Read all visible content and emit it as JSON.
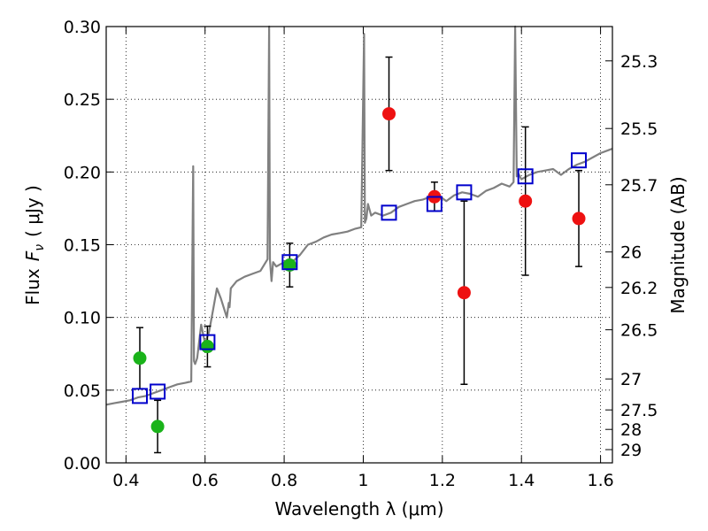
{
  "chart_data": {
    "type": "scatter",
    "xlabel": "Wavelength  λ (μm)",
    "ylabel": "Flux  F_ν  ( μJy )",
    "ylabel_parts": {
      "prefix": "Flux",
      "symbol": "F",
      "subscript": "ν",
      "unit": "( μJy )"
    },
    "ylabel_right": "Magnitude (AB)",
    "xlim": [
      0.35,
      1.63
    ],
    "ylim": [
      0.0,
      0.3
    ],
    "x_ticks": [
      0.4,
      0.6,
      0.8,
      1.0,
      1.2,
      1.4,
      1.6
    ],
    "x_tick_labels": [
      "0.4",
      "0.6",
      "0.8",
      "1",
      "1.2",
      "1.4",
      "1.6"
    ],
    "y_ticks": [
      0.0,
      0.05,
      0.1,
      0.15,
      0.2,
      0.25,
      0.3
    ],
    "y_tick_labels": [
      "0.00",
      "0.05",
      "0.10",
      "0.15",
      "0.20",
      "0.25",
      "0.30"
    ],
    "right_ticks": [
      {
        "label": "25.3",
        "flux": 0.2764
      },
      {
        "label": "25.5",
        "flux": 0.2299
      },
      {
        "label": "25.7",
        "flux": 0.1912
      },
      {
        "label": "26",
        "flux": 0.145
      },
      {
        "label": "26.2",
        "flux": 0.1206
      },
      {
        "label": "26.5",
        "flux": 0.0915
      },
      {
        "label": "27",
        "flux": 0.0577
      },
      {
        "label": "27.5",
        "flux": 0.0364
      },
      {
        "label": "28",
        "flux": 0.023
      },
      {
        "label": "29",
        "flux": 0.0091
      }
    ],
    "grid": true,
    "series": [
      {
        "name": "observed (green)",
        "color": "#1ab31a",
        "marker": "circle",
        "points": [
          {
            "x": 0.435,
            "y": 0.072,
            "err": 0.021
          },
          {
            "x": 0.48,
            "y": 0.025,
            "err": 0.018
          },
          {
            "x": 0.606,
            "y": 0.08,
            "err": 0.014
          },
          {
            "x": 0.814,
            "y": 0.136,
            "err": 0.015
          }
        ]
      },
      {
        "name": "observed (red)",
        "color": "#ee1111",
        "marker": "circle",
        "points": [
          {
            "x": 1.065,
            "y": 0.24,
            "err": 0.039
          },
          {
            "x": 1.18,
            "y": 0.183,
            "err": 0.01
          },
          {
            "x": 1.255,
            "y": 0.117,
            "err": 0.063
          },
          {
            "x": 1.41,
            "y": 0.18,
            "err": 0.051
          },
          {
            "x": 1.545,
            "y": 0.168,
            "err": 0.033
          }
        ]
      },
      {
        "name": "model photometry",
        "color": "#0000cc",
        "marker": "open-square",
        "points": [
          {
            "x": 0.435,
            "y": 0.046
          },
          {
            "x": 0.48,
            "y": 0.049
          },
          {
            "x": 0.606,
            "y": 0.083
          },
          {
            "x": 0.814,
            "y": 0.138
          },
          {
            "x": 1.065,
            "y": 0.172
          },
          {
            "x": 1.18,
            "y": 0.178
          },
          {
            "x": 1.255,
            "y": 0.186
          },
          {
            "x": 1.41,
            "y": 0.197
          },
          {
            "x": 1.545,
            "y": 0.208
          }
        ]
      }
    ],
    "spectrum": {
      "name": "model spectrum",
      "color": "#808080",
      "x": [
        0.35,
        0.37,
        0.39,
        0.41,
        0.43,
        0.45,
        0.47,
        0.49,
        0.51,
        0.53,
        0.55,
        0.565,
        0.57,
        0.572,
        0.575,
        0.58,
        0.59,
        0.6,
        0.61,
        0.62,
        0.63,
        0.64,
        0.655,
        0.66,
        0.662,
        0.665,
        0.68,
        0.7,
        0.72,
        0.74,
        0.758,
        0.762,
        0.764,
        0.768,
        0.772,
        0.78,
        0.8,
        0.82,
        0.84,
        0.86,
        0.88,
        0.9,
        0.92,
        0.94,
        0.96,
        0.98,
        0.995,
        1.002,
        1.004,
        1.008,
        1.012,
        1.02,
        1.03,
        1.05,
        1.07,
        1.09,
        1.11,
        1.13,
        1.15,
        1.17,
        1.19,
        1.21,
        1.23,
        1.25,
        1.27,
        1.29,
        1.31,
        1.33,
        1.35,
        1.37,
        1.38,
        1.384,
        1.388,
        1.392,
        1.4,
        1.42,
        1.44,
        1.46,
        1.48,
        1.5,
        1.52,
        1.54,
        1.56,
        1.58,
        1.6,
        1.62,
        1.63
      ],
      "y": [
        0.04,
        0.041,
        0.042,
        0.043,
        0.045,
        0.046,
        0.048,
        0.05,
        0.052,
        0.054,
        0.055,
        0.056,
        0.204,
        0.07,
        0.068,
        0.072,
        0.095,
        0.082,
        0.09,
        0.105,
        0.12,
        0.113,
        0.1,
        0.11,
        0.107,
        0.12,
        0.125,
        0.128,
        0.13,
        0.132,
        0.14,
        0.3,
        0.14,
        0.125,
        0.138,
        0.135,
        0.138,
        0.138,
        0.143,
        0.15,
        0.152,
        0.155,
        0.157,
        0.158,
        0.159,
        0.161,
        0.162,
        0.295,
        0.165,
        0.168,
        0.178,
        0.17,
        0.172,
        0.17,
        0.172,
        0.176,
        0.178,
        0.18,
        0.181,
        0.183,
        0.184,
        0.18,
        0.184,
        0.186,
        0.185,
        0.183,
        0.187,
        0.189,
        0.192,
        0.19,
        0.193,
        0.3,
        0.197,
        0.199,
        0.195,
        0.198,
        0.2,
        0.201,
        0.202,
        0.198,
        0.202,
        0.205,
        0.207,
        0.21,
        0.213,
        0.215,
        0.216
      ]
    }
  }
}
